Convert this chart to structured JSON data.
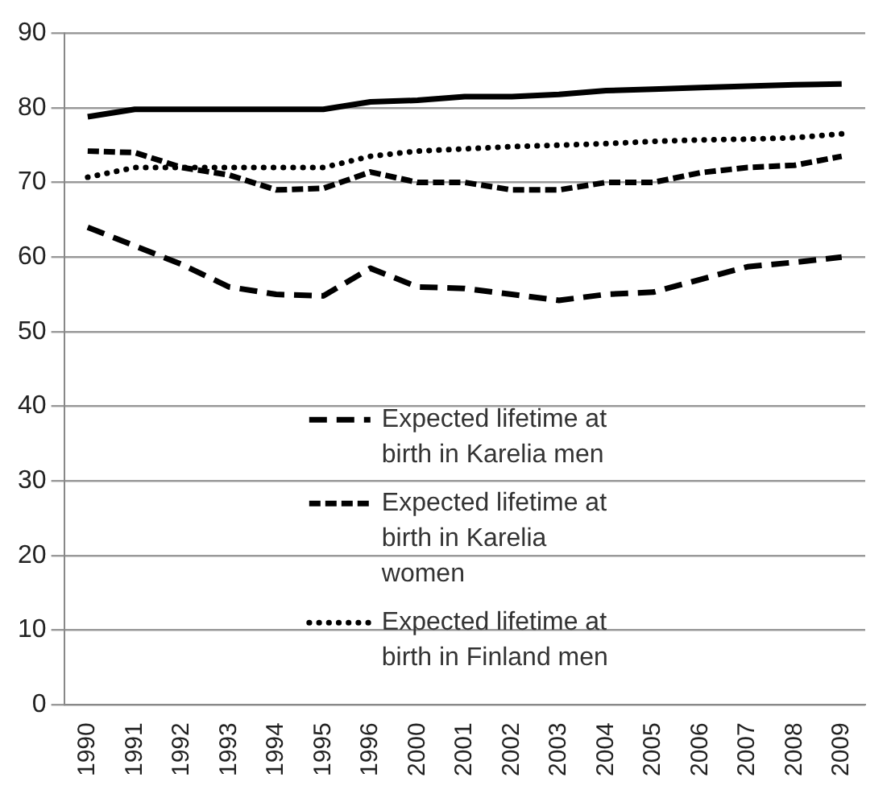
{
  "chart_data": {
    "type": "line",
    "categories": [
      "1990",
      "1991",
      "1992",
      "1993",
      "1994",
      "1995",
      "1996",
      "2000",
      "2001",
      "2002",
      "2003",
      "2004",
      "2005",
      "2006",
      "2007",
      "2008",
      "2009"
    ],
    "ylim": [
      0,
      90
    ],
    "yticks": [
      0,
      10,
      20,
      30,
      40,
      50,
      60,
      70,
      80,
      90
    ],
    "grid": "y",
    "legend": "bottom",
    "marker": "none",
    "series": [
      {
        "name": "Expected lifetime at birth in Karelia men",
        "color": "#000000",
        "line_style": "dashed",
        "values": [
          64,
          61.5,
          59,
          56,
          55,
          54.8,
          58.5,
          56,
          55.8,
          55,
          54.2,
          55,
          55.3,
          57,
          58.7,
          59.3,
          60
        ]
      },
      {
        "name": "Expected lifetime at birth in Karelia women",
        "color": "#000000",
        "line_style": "dashed",
        "values": [
          74.2,
          74,
          72,
          71,
          69,
          69.2,
          71.4,
          70,
          70,
          69,
          69,
          70,
          70,
          71.3,
          72,
          72.3,
          73.5
        ]
      },
      {
        "name": "Expected lifetime at birth in Finland men",
        "color": "#000000",
        "line_style": "dotted",
        "values": [
          70.7,
          72,
          72,
          72,
          72,
          72,
          73.5,
          74.2,
          74.5,
          74.8,
          75,
          75.2,
          75.5,
          75.7,
          75.8,
          76,
          76.5
        ]
      },
      {
        "color": "#000000",
        "line_style": "solid",
        "values": [
          78.8,
          79.8,
          79.8,
          79.8,
          79.8,
          79.8,
          80.8,
          81,
          81.5,
          81.5,
          81.8,
          82.3,
          82.5,
          82.7,
          82.9,
          83.1,
          83.2
        ]
      }
    ]
  }
}
